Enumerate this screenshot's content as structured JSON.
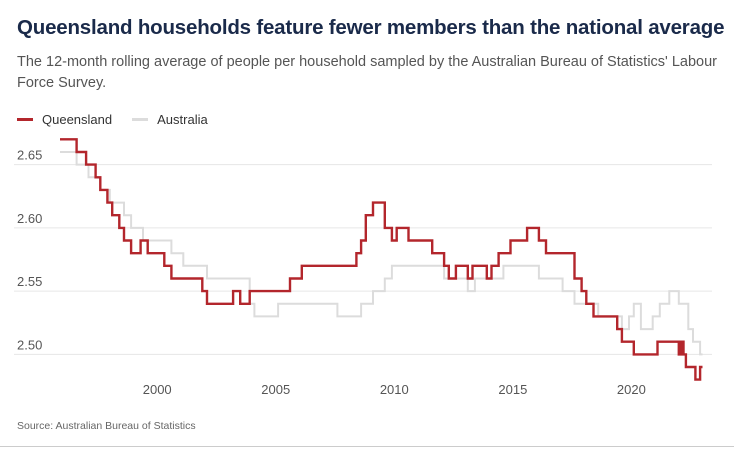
{
  "header": {
    "title": "Queensland households feature fewer members than the national average",
    "subtitle": "The 12-month rolling average of people per household sampled by the Australian Bureau of Statistics' Labour Force Survey."
  },
  "legend": {
    "qld_label": "Queensland",
    "aus_label": "Australia"
  },
  "footer": {
    "source": "Source: Australian Bureau of Statistics"
  },
  "colors": {
    "qld": "#b3262c",
    "aus": "#dcdcdc",
    "grid": "#e6e6e6",
    "text": "#555555"
  },
  "chart_data": {
    "type": "line",
    "title": "Queensland households feature fewer members than the national average",
    "xlabel": "",
    "ylabel": "",
    "xlim": [
      1995.9,
      2023.4
    ],
    "ylim": [
      2.49,
      2.675
    ],
    "yticks": [
      2.5,
      2.55,
      2.6,
      2.65
    ],
    "ytick_labels": [
      "2.50",
      "2.55",
      "2.60",
      "2.65"
    ],
    "xticks": [
      2000,
      2005,
      2010,
      2015,
      2020
    ],
    "xtick_labels": [
      "2000",
      "2005",
      "2010",
      "2015",
      "2020"
    ],
    "grid": "horizontal",
    "legend_position": "top-left",
    "series": [
      {
        "name": "Queensland",
        "step": true,
        "x": [
          1995.9,
          1996.6,
          1997.0,
          1997.4,
          1997.6,
          1997.9,
          1998.1,
          1998.4,
          1998.6,
          1998.9,
          1999.3,
          1999.6,
          2000.3,
          2000.6,
          2001.0,
          2001.9,
          2002.1,
          2003.2,
          2003.5,
          2003.9,
          2004.4,
          2005.6,
          2006.1,
          2006.4,
          2008.4,
          2008.6,
          2008.8,
          2009.1,
          2009.6,
          2009.9,
          2010.1,
          2010.6,
          2011.6,
          2012.1,
          2012.3,
          2012.6,
          2013.1,
          2013.3,
          2013.9,
          2014.1,
          2014.4,
          2014.9,
          2015.1,
          2015.6,
          2016.1,
          2016.4,
          2017.6,
          2017.9,
          2018.1,
          2018.4,
          2019.1,
          2019.4,
          2019.6,
          2019.9,
          2020.1,
          2020.6,
          2021.1,
          2021.6,
          2022.0,
          2022.1,
          2022.2,
          2022.3,
          2022.5,
          2022.7,
          2022.8,
          2022.9,
          2023.0
        ],
        "values": [
          2.67,
          2.66,
          2.65,
          2.64,
          2.63,
          2.62,
          2.61,
          2.6,
          2.59,
          2.58,
          2.59,
          2.58,
          2.57,
          2.56,
          2.56,
          2.55,
          2.54,
          2.55,
          2.54,
          2.55,
          2.55,
          2.56,
          2.57,
          2.57,
          2.58,
          2.59,
          2.61,
          2.62,
          2.6,
          2.59,
          2.6,
          2.59,
          2.58,
          2.57,
          2.56,
          2.57,
          2.56,
          2.57,
          2.56,
          2.57,
          2.58,
          2.59,
          2.59,
          2.6,
          2.59,
          2.58,
          2.56,
          2.55,
          2.54,
          2.53,
          2.53,
          2.52,
          2.51,
          2.51,
          2.5,
          2.5,
          2.51,
          2.51,
          2.5,
          2.51,
          2.5,
          2.49,
          2.49,
          2.48,
          2.48,
          2.49,
          2.49
        ]
      },
      {
        "name": "Australia",
        "step": true,
        "x": [
          1995.9,
          1996.6,
          1997.1,
          1997.6,
          1998.0,
          1998.6,
          1998.9,
          1999.4,
          2000.1,
          2000.6,
          2001.1,
          2001.8,
          2002.1,
          2002.6,
          2003.9,
          2004.1,
          2005.1,
          2006.6,
          2007.6,
          2008.1,
          2008.6,
          2009.1,
          2009.6,
          2009.9,
          2010.4,
          2012.1,
          2012.6,
          2013.1,
          2013.4,
          2013.9,
          2014.4,
          2014.6,
          2015.6,
          2016.1,
          2017.1,
          2017.6,
          2018.1,
          2018.6,
          2019.1,
          2019.6,
          2019.9,
          2020.1,
          2020.4,
          2020.9,
          2021.2,
          2021.6,
          2022.0,
          2022.4,
          2022.6,
          2022.9,
          2023.0
        ],
        "values": [
          2.66,
          2.65,
          2.64,
          2.63,
          2.62,
          2.61,
          2.6,
          2.59,
          2.59,
          2.58,
          2.57,
          2.57,
          2.56,
          2.56,
          2.54,
          2.53,
          2.54,
          2.54,
          2.53,
          2.53,
          2.54,
          2.55,
          2.56,
          2.57,
          2.57,
          2.56,
          2.56,
          2.55,
          2.56,
          2.56,
          2.56,
          2.57,
          2.57,
          2.56,
          2.55,
          2.54,
          2.54,
          2.53,
          2.53,
          2.52,
          2.53,
          2.54,
          2.52,
          2.53,
          2.54,
          2.55,
          2.54,
          2.52,
          2.51,
          2.5,
          2.5
        ]
      }
    ]
  }
}
